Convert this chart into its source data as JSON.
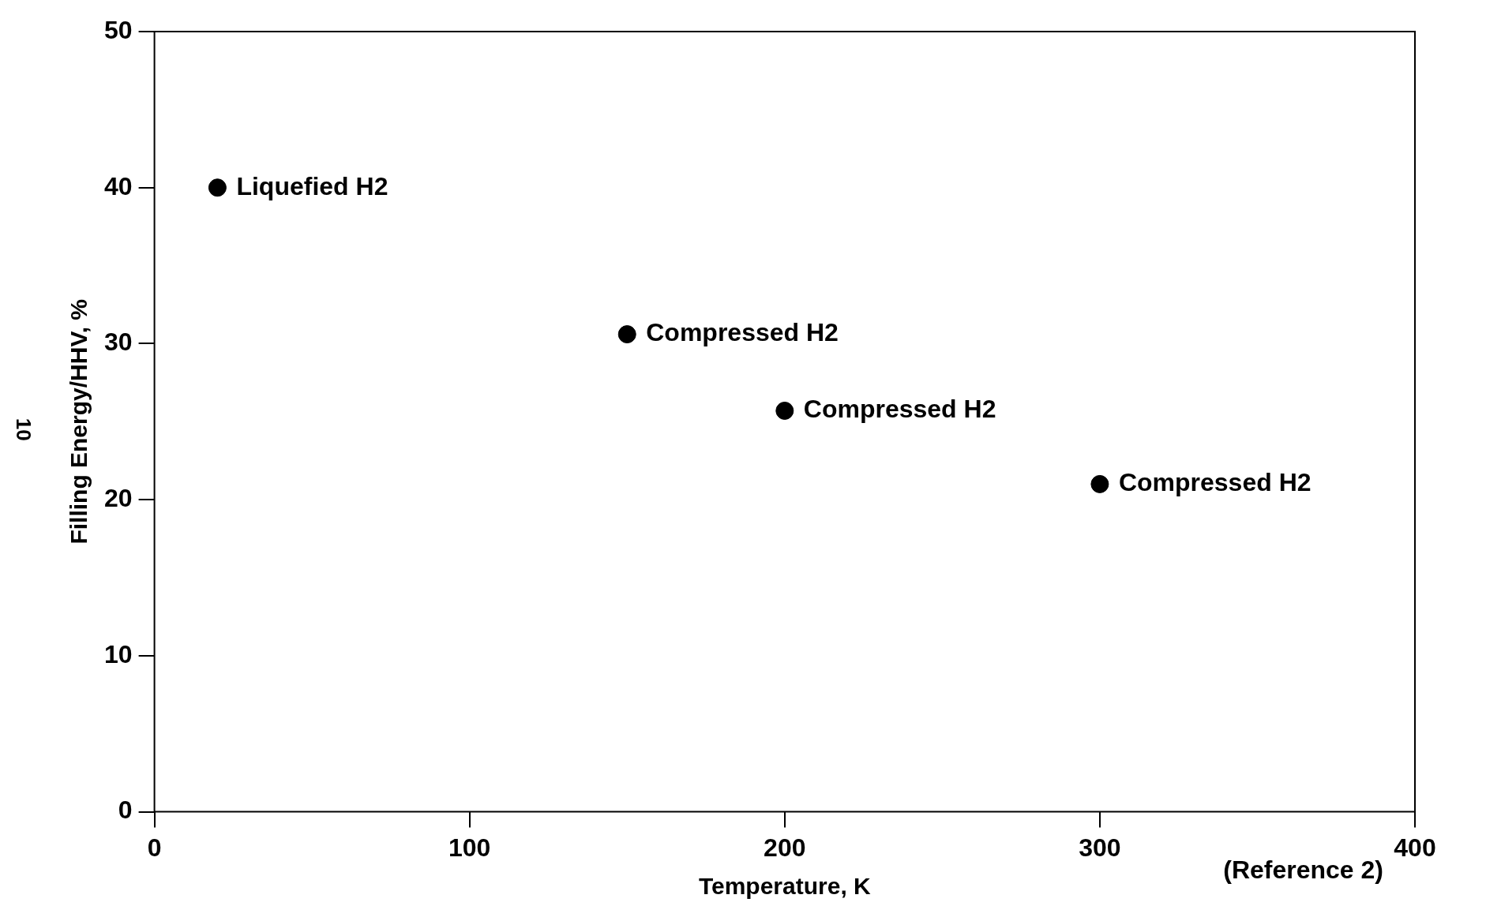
{
  "chart_data": {
    "type": "scatter",
    "xlabel": "Temperature, K",
    "ylabel": "Filling Energy/HHV, %",
    "x": [
      20,
      150,
      200,
      300
    ],
    "series": [
      {
        "color": "#000000",
        "values": [
          40,
          30.6,
          25.7,
          21
        ]
      }
    ],
    "xlim": [
      0,
      400
    ],
    "xticks": [
      0,
      100,
      200,
      300,
      400
    ],
    "ylim": [
      0,
      50
    ],
    "yticks": [
      0,
      10,
      20,
      30,
      40,
      50
    ],
    "grid": false,
    "legend": false,
    "marker": "circle",
    "annotations": [
      {
        "text": "Liquefied H2",
        "x": 20,
        "y": 40
      },
      {
        "text": "Compressed H2",
        "x": 150,
        "y": 30.6
      },
      {
        "text": "Compressed H2",
        "x": 200,
        "y": 25.7
      },
      {
        "text": "Compressed H2",
        "x": 300,
        "y": 21
      },
      "(Reference 2)",
      "10"
    ]
  }
}
